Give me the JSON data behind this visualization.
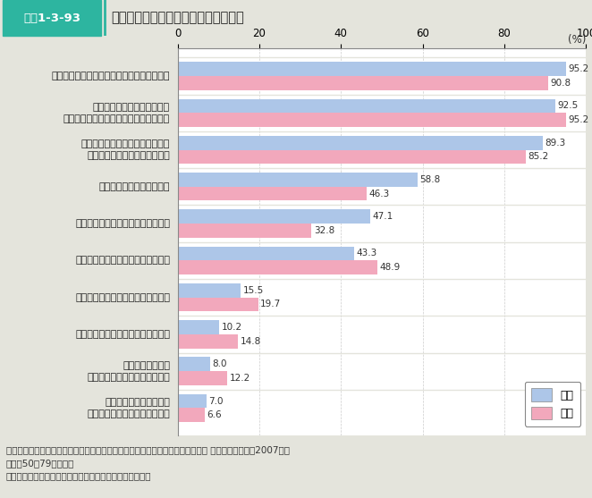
{
  "title_box_label": "図表1-3-93",
  "title_main": "祖父母世代の孫との関係に関する意識",
  "categories": [
    "孫がいることに張り合いや生き甲斐を感じる",
    "親として子育てをした頃より\n精神的なゆとりを持って孫に接している",
    "孫と接するとき、怪我をさせたり\n体調を崩させないか気をつかう",
    "孫をつい甘やかしてしまう",
    "孫の子育てにもう少しかかわりたい",
    "孫と接すると身体的に疲れを感じる",
    "孫と接すると精神的に疲れを感じる",
    "孫への支援に経済面で負担を感じる",
    "孫の親は子育てを\n自分に頼りすぎている面がある",
    "孫の世話の負担が重く、\n自分のための時間が取りにくい"
  ],
  "grandfather_values": [
    95.2,
    92.5,
    89.3,
    58.8,
    47.1,
    43.3,
    15.5,
    10.2,
    8.0,
    7.0
  ],
  "grandmother_values": [
    90.8,
    95.2,
    85.2,
    46.3,
    32.8,
    48.9,
    19.7,
    14.8,
    12.2,
    6.6
  ],
  "grandfather_color": "#adc6e8",
  "grandmother_color": "#f2a8bc",
  "xlim": [
    0,
    100
  ],
  "xticks": [
    0,
    20,
    40,
    60,
    80,
    100
  ],
  "background_color": "#e4e4dc",
  "plot_background": "#ffffff",
  "footer_lines": [
    "資料：株式会社第一生命経済研究所「子育て世代のワーク・ライフ・バランスと ゝ祖父母力ゝ」（2007年）",
    "対象：50～79歳の男女",
    "（注）　「そう思う」「まあそう思う」と答えた人の割合"
  ],
  "legend_labels": [
    "祖父",
    "祖母"
  ],
  "bar_height": 0.38,
  "title_box_bg": "#2db5a0",
  "title_box_text_color": "#ffffff",
  "title_separator_color": "#2db5a0",
  "grid_color": "#cccccc",
  "value_fontsize": 7.5,
  "axis_fontsize": 8.5,
  "label_fontsize": 8.0,
  "footer_fontsize": 7.5
}
